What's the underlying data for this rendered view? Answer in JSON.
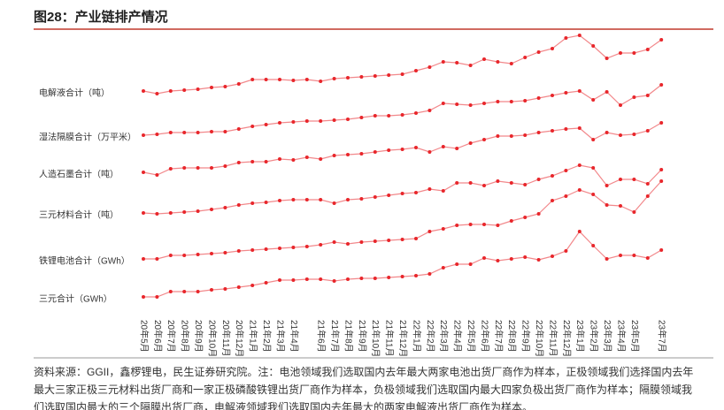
{
  "chart_data": {
    "type": "line",
    "title": "图28：产业链排产情况",
    "categories": [
      "20年5月",
      "20年6月",
      "20年7月",
      "20年8月",
      "20年9月",
      "20年10月",
      "20年11月",
      "20年12月",
      "21年1月",
      "21年2月",
      "21年3月",
      "21年4月",
      null,
      "21年6月",
      "21年7月",
      "21年8月",
      "21年9月",
      "21年10月",
      "21年11月",
      "21年12月",
      "22年1月",
      "22年2月",
      "22年3月",
      "22年4月",
      "22年5月",
      "22年6月",
      "22年7月",
      "22年8月",
      "22年9月",
      "22年10月",
      "22年11月",
      "22年12月",
      "23年1月",
      "23年2月",
      "23年3月",
      "23年4月",
      "23年5月",
      null,
      "23年7月"
    ],
    "series": [
      {
        "name": "电解液合计（吨）",
        "color": "#e8262b",
        "values": [
          247,
          244,
          247,
          248,
          249,
          251,
          252,
          255,
          260,
          260,
          260,
          259,
          260,
          258,
          261,
          262,
          263,
          264,
          265,
          266,
          270,
          274,
          280,
          279,
          276,
          283,
          280,
          278,
          285,
          291,
          295,
          307,
          310,
          298,
          284,
          290,
          290,
          294,
          305
        ]
      },
      {
        "name": "湿法隔膜合计（万平米）",
        "color": "#e8262b",
        "values": [
          197,
          198,
          200,
          200,
          200,
          201,
          201,
          204,
          207,
          209,
          211,
          212,
          213,
          213,
          214,
          215,
          217,
          219,
          219,
          220,
          222,
          225,
          233,
          232,
          231,
          233,
          235,
          235,
          236,
          239,
          242,
          245,
          247,
          237,
          246,
          231,
          240,
          242,
          254
        ]
      },
      {
        "name": "人造石墨合计（吨）",
        "color": "#e8262b",
        "values": [
          155,
          152,
          159,
          160,
          160,
          160,
          162,
          166,
          167,
          167,
          170,
          169,
          172,
          170,
          174,
          175,
          176,
          178,
          180,
          181,
          183,
          178,
          184,
          182,
          188,
          192,
          196,
          196,
          197,
          200,
          202,
          204,
          205,
          192,
          200,
          197,
          198,
          202,
          211
        ]
      },
      {
        "name": "三元材料合计（吨）",
        "color": "#e8262b",
        "values": [
          109,
          108,
          109,
          110,
          111,
          113,
          115,
          118,
          120,
          121,
          123,
          124,
          124,
          124,
          120,
          124,
          125,
          127,
          129,
          131,
          132,
          136,
          134,
          143,
          143,
          140,
          145,
          143,
          141,
          147,
          151,
          157,
          163,
          160,
          140,
          147,
          147,
          142,
          158
        ]
      },
      {
        "name": "铁锂电池合计（GWh）",
        "color": "#e8262b",
        "values": [
          57,
          57,
          61,
          61,
          62,
          63,
          64,
          66,
          67,
          68,
          69,
          70,
          71,
          73,
          76,
          74,
          76,
          77,
          78,
          79,
          80,
          88,
          91,
          95,
          96,
          96,
          95,
          100,
          104,
          108,
          123,
          128,
          135,
          130,
          118,
          117,
          110,
          128,
          145
        ]
      },
      {
        "name": "三元合计（GWh）",
        "color": "#e8262b",
        "values": [
          14,
          14,
          20,
          20,
          20,
          22,
          23,
          25,
          27,
          30,
          33,
          33,
          34,
          34,
          32,
          34,
          35,
          35,
          36,
          37,
          38,
          40,
          47,
          51,
          51,
          58,
          55,
          57,
          59,
          56,
          60,
          66,
          88,
          72,
          57,
          61,
          61,
          58,
          67
        ]
      }
    ],
    "source": [
      "资料来源：GGII，鑫椤锂电，民生证券研究院。注：电池领域我们选取国内去年最大两家电池出货厂商作为样本，正极领域我们选择国内去年",
      "最大三家正极三元材料出货厂商和一家正极磷酸铁锂出货厂商作为样本，负极领域我们选取国内最大四家负极出货厂商作为样本；隔膜领域我",
      "们选取国内最大的三个隔膜出货厂商，电解液领域我们选取国内去年最大的两家电解液出货厂商作为样本。"
    ]
  }
}
